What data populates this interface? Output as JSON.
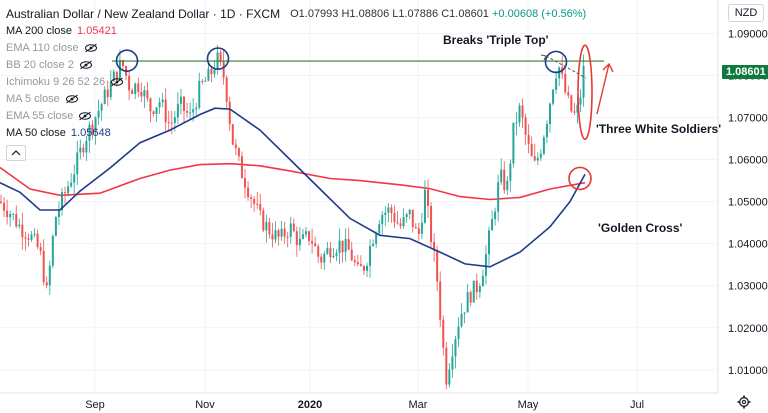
{
  "header": {
    "symbol": "Australian Dollar / New Zealand Dollar · 1D · FXCM",
    "open": "O1.07993",
    "high": "H1.08806",
    "low": "L1.07886",
    "close": "C1.08601",
    "change": "+0.00608 (+0.56%)"
  },
  "indicators": [
    {
      "label": "MA 200 close",
      "value": "1.05421",
      "color": "#f23645",
      "eye": false
    },
    {
      "label": "EMA 110 close",
      "value": "",
      "color": "#787b86",
      "eye": true
    },
    {
      "label": "BB 20 close 2",
      "value": "",
      "color": "#787b86",
      "eye": true
    },
    {
      "label": "Ichimoku 9 26 52 26",
      "value": "",
      "color": "#787b86",
      "eye": true
    },
    {
      "label": "MA 5 close",
      "value": "",
      "color": "#787b86",
      "eye": true
    },
    {
      "label": "EMA 55 close",
      "value": "",
      "color": "#787b86",
      "eye": true
    },
    {
      "label": "MA 50 close",
      "value": "1.05648",
      "color": "#1e3a8a",
      "eye": false
    }
  ],
  "currency_button": "NZD",
  "current_price": "1.08601",
  "annotations": {
    "triple_top": "Breaks 'Triple Top'",
    "three_white_soldiers": "'Three White Soldiers'",
    "golden_cross": "'Golden Cross'"
  },
  "colors": {
    "up": "#26a69a",
    "down": "#ef5350",
    "ma200": "#f23645",
    "ma50": "#1e3a8a",
    "resistance": "#2e7d32",
    "circle_blue": "#1e3a8a",
    "circle_red": "#e53935"
  },
  "chart_data": {
    "type": "candlestick",
    "symbol": "AUD/NZD",
    "timeframe": "1D",
    "y_ticks": [
      1.01,
      1.02,
      1.03,
      1.04,
      1.05,
      1.06,
      1.07,
      1.08,
      1.09
    ],
    "y_tick_labels": [
      "1.01000",
      "1.02000",
      "1.03000",
      "1.04000",
      "1.05000",
      "1.06000",
      "1.07000",
      "1.08000",
      "1.09000"
    ],
    "x_tick_labels": [
      "Sep",
      "Nov",
      "2020",
      "Mar",
      "May",
      "Jul"
    ],
    "ylim": [
      1.0045,
      1.0965
    ],
    "resistance_level": 1.0834,
    "ma200_path": [
      [
        0,
        1.0581
      ],
      [
        30,
        1.053
      ],
      [
        60,
        1.0515
      ],
      [
        100,
        1.052
      ],
      [
        140,
        1.0555
      ],
      [
        170,
        1.0575
      ],
      [
        200,
        1.0588
      ],
      [
        230,
        1.059
      ],
      [
        260,
        1.0585
      ],
      [
        290,
        1.0573
      ],
      [
        330,
        1.0555
      ],
      [
        360,
        1.055
      ],
      [
        400,
        1.054
      ],
      [
        430,
        1.0531
      ],
      [
        460,
        1.0512
      ],
      [
        490,
        1.0505
      ],
      [
        520,
        1.051
      ],
      [
        550,
        1.053
      ],
      [
        585,
        1.0545
      ]
    ],
    "ma50_path": [
      [
        0,
        1.0545
      ],
      [
        20,
        1.0522
      ],
      [
        40,
        1.048
      ],
      [
        60,
        1.048
      ],
      [
        80,
        1.0525
      ],
      [
        110,
        1.058
      ],
      [
        140,
        1.064
      ],
      [
        170,
        1.067
      ],
      [
        200,
        1.0707
      ],
      [
        215,
        1.0722
      ],
      [
        230,
        1.072
      ],
      [
        260,
        1.067
      ],
      [
        290,
        1.06
      ],
      [
        320,
        1.053
      ],
      [
        350,
        1.046
      ],
      [
        380,
        1.042
      ],
      [
        410,
        1.0412
      ],
      [
        440,
        1.038
      ],
      [
        465,
        1.0352
      ],
      [
        490,
        1.0345
      ],
      [
        520,
        1.038
      ],
      [
        550,
        1.044
      ],
      [
        570,
        1.05
      ],
      [
        585,
        1.0565
      ]
    ],
    "close_path": [
      [
        0,
        1.05
      ],
      [
        10,
        1.0475
      ],
      [
        20,
        1.044
      ],
      [
        30,
        1.042
      ],
      [
        40,
        1.038
      ],
      [
        47,
        1.028
      ],
      [
        55,
        1.046
      ],
      [
        65,
        1.052
      ],
      [
        75,
        1.058
      ],
      [
        85,
        1.065
      ],
      [
        95,
        1.07
      ],
      [
        105,
        1.075
      ],
      [
        115,
        1.08
      ],
      [
        122,
        1.083
      ],
      [
        130,
        1.077
      ],
      [
        140,
        1.078
      ],
      [
        150,
        1.072
      ],
      [
        160,
        1.074
      ],
      [
        170,
        1.068
      ],
      [
        180,
        1.073
      ],
      [
        190,
        1.07
      ],
      [
        200,
        1.077
      ],
      [
        210,
        1.08
      ],
      [
        217,
        1.084
      ],
      [
        225,
        1.079
      ],
      [
        232,
        1.065
      ],
      [
        240,
        1.058
      ],
      [
        250,
        1.052
      ],
      [
        260,
        1.046
      ],
      [
        270,
        1.043
      ],
      [
        280,
        1.041
      ],
      [
        290,
        1.044
      ],
      [
        300,
        1.04
      ],
      [
        310,
        1.042
      ],
      [
        320,
        1.036
      ],
      [
        330,
        1.039
      ],
      [
        340,
        1.04
      ],
      [
        350,
        1.038
      ],
      [
        358,
        1.033
      ],
      [
        365,
        1.035
      ],
      [
        372,
        1.041
      ],
      [
        380,
        1.047
      ],
      [
        390,
        1.048
      ],
      [
        400,
        1.044
      ],
      [
        410,
        1.047
      ],
      [
        418,
        1.041
      ],
      [
        425,
        1.052
      ],
      [
        432,
        1.04
      ],
      [
        438,
        1.03
      ],
      [
        442,
        1.018
      ],
      [
        446,
        1.008
      ],
      [
        452,
        1.015
      ],
      [
        460,
        1.023
      ],
      [
        470,
        1.028
      ],
      [
        478,
        1.03
      ],
      [
        485,
        1.036
      ],
      [
        492,
        1.045
      ],
      [
        500,
        1.056
      ],
      [
        507,
        1.053
      ],
      [
        514,
        1.068
      ],
      [
        520,
        1.072
      ],
      [
        527,
        1.064
      ],
      [
        534,
        1.058
      ],
      [
        540,
        1.062
      ],
      [
        547,
        1.07
      ],
      [
        553,
        1.078
      ],
      [
        558,
        1.083
      ],
      [
        564,
        1.077
      ],
      [
        570,
        1.072
      ],
      [
        576,
        1.07
      ],
      [
        581,
        1.076
      ],
      [
        586,
        1.086
      ]
    ],
    "circles": [
      {
        "x": 127,
        "value": 1.0835
      },
      {
        "x": 218,
        "value": 1.084
      },
      {
        "x": 556,
        "value": 1.0832
      }
    ],
    "red_circles": [
      {
        "x": 585,
        "value": 1.076,
        "kind": "three-white-soldiers"
      },
      {
        "x": 580,
        "value": 1.0555,
        "kind": "golden-cross"
      }
    ]
  }
}
